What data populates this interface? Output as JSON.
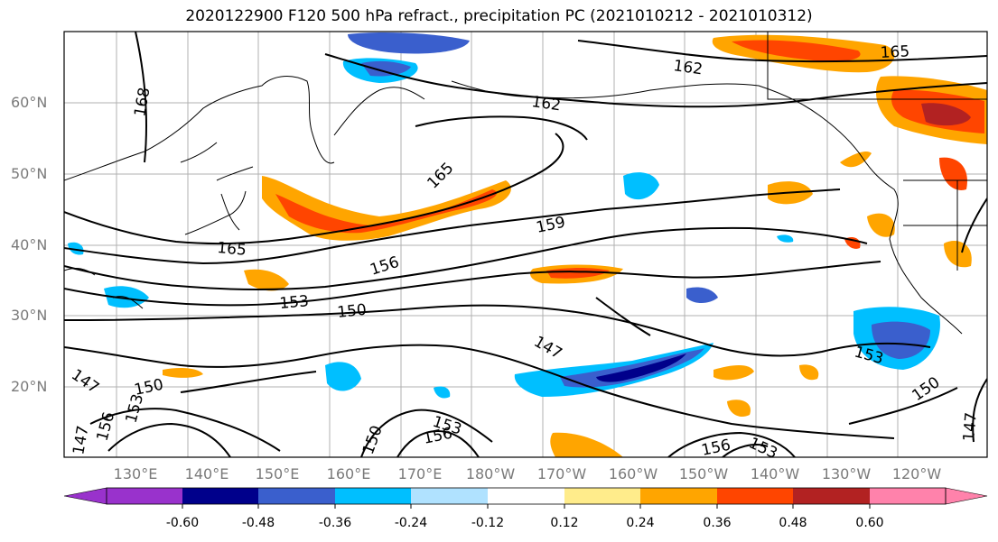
{
  "title": "2020122900 F120 500 hPa refract., precipitation PC (2021010212 - 2021010312)",
  "lat_labels": [
    "60°N",
    "50°N",
    "40°N",
    "30°N",
    "20°N"
  ],
  "lon_labels": [
    "130°E",
    "140°E",
    "150°E",
    "160°E",
    "170°E",
    "180°W",
    "170°W",
    "160°W",
    "150°W",
    "140°W",
    "130°W",
    "120°W"
  ],
  "contour_labels": [
    "168",
    "165",
    "162",
    "162",
    "165",
    "165",
    "159",
    "156",
    "153",
    "150",
    "147",
    "147",
    "150",
    "156",
    "153",
    "153",
    "156",
    "153",
    "150",
    "147",
    "156",
    "153",
    "150",
    "147"
  ],
  "colorbar": {
    "ticks": [
      "-0.60",
      "-0.48",
      "-0.36",
      "-0.24",
      "-0.12",
      "0.12",
      "0.24",
      "0.36",
      "0.48",
      "0.60"
    ],
    "colors": [
      "#9932cc",
      "#00008b",
      "#3a5fcd",
      "#00bfff",
      "#b0e2ff",
      "#ffffff",
      "#ffec8b",
      "#ffa500",
      "#ff4500",
      "#b22222",
      "#ff82ab"
    ]
  }
}
